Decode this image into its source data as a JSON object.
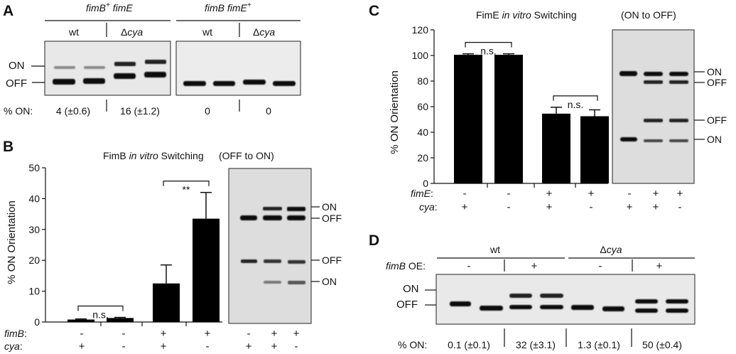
{
  "panels": {
    "A": {
      "letter": "A",
      "groups": [
        {
          "genotype_main": "fimB",
          "genotype_sup": "+",
          "genotype_tail": " fimE"
        },
        {
          "genotype_main": "fimB fimE",
          "genotype_sup": "+",
          "genotype_tail": ""
        }
      ],
      "strain_wt": "wt",
      "strain_delta": "Δ",
      "strain_mut": "cya",
      "band_on": "ON",
      "band_off": "OFF",
      "row_label": "% ON:",
      "values": [
        "4 (±0.6)",
        "16 (±1.2)",
        "0",
        "0"
      ]
    },
    "B": {
      "letter": "B",
      "chart_data": {
        "type": "bar",
        "title_pre": "FimB ",
        "title_em": "in vitro",
        "title_post": " Switching",
        "ylabel": "% ON Orientation",
        "ylim": [
          0,
          50
        ],
        "yticks": [
          0,
          10,
          20,
          30,
          40,
          50
        ],
        "values": [
          0.8,
          1.3,
          12.5,
          33.5
        ],
        "errors": [
          0.2,
          0.2,
          6.0,
          8.5
        ],
        "significance": [
          {
            "from": 0,
            "to": 1,
            "label": "n.s."
          },
          {
            "from": 2,
            "to": 3,
            "label": "**"
          }
        ]
      },
      "gel_title": "(OFF to ON)",
      "band_labels": [
        "ON",
        "OFF",
        "OFF",
        "ON"
      ],
      "row1_label": "fimB",
      "row2_label": "cya",
      "row1": [
        "-",
        "-",
        "+",
        "+"
      ],
      "row2": [
        "+",
        "-",
        "+",
        "-"
      ],
      "gel_row1": [
        "-",
        "+",
        "+"
      ],
      "gel_row2": [
        "+",
        "+",
        "-"
      ]
    },
    "C": {
      "letter": "C",
      "chart_data": {
        "type": "bar",
        "title_pre": "FimE ",
        "title_em": "in vitro",
        "title_post": " Switching",
        "ylabel": "% ON Orientation",
        "ylim": [
          0,
          120
        ],
        "yticks": [
          0,
          20,
          40,
          60,
          80,
          100,
          120
        ],
        "values": [
          100.5,
          100.5,
          54.5,
          52.5
        ],
        "errors": [
          0.8,
          0.8,
          5.0,
          5.0
        ],
        "significance": [
          {
            "from": 0,
            "to": 1,
            "label": "n.s."
          },
          {
            "from": 2,
            "to": 3,
            "label": "n.s."
          }
        ]
      },
      "gel_title": "(ON to OFF)",
      "band_labels": [
        "ON",
        "OFF",
        "OFF",
        "ON"
      ],
      "row1_label": "fimE",
      "row2_label": "cya",
      "row1": [
        "-",
        "-",
        "+",
        "+"
      ],
      "row2": [
        "+",
        "-",
        "+",
        "-"
      ],
      "gel_row1": [
        "-",
        "+",
        "+"
      ],
      "gel_row2": [
        "+",
        "+",
        "-"
      ]
    },
    "D": {
      "letter": "D",
      "strain_wt": "wt",
      "strain_delta": "Δ",
      "strain_mut": "cya",
      "oe_label": "fimB",
      "oe_suffix": " OE:",
      "oe_signs": [
        "-",
        "+",
        "-",
        "+"
      ],
      "band_on": "ON",
      "band_off": "OFF",
      "row_label": "% ON:",
      "values": [
        "0.1 (±0.1)",
        "32 (±3.1)",
        "1.3 (±0.1)",
        "50 (±0.4)"
      ]
    }
  }
}
